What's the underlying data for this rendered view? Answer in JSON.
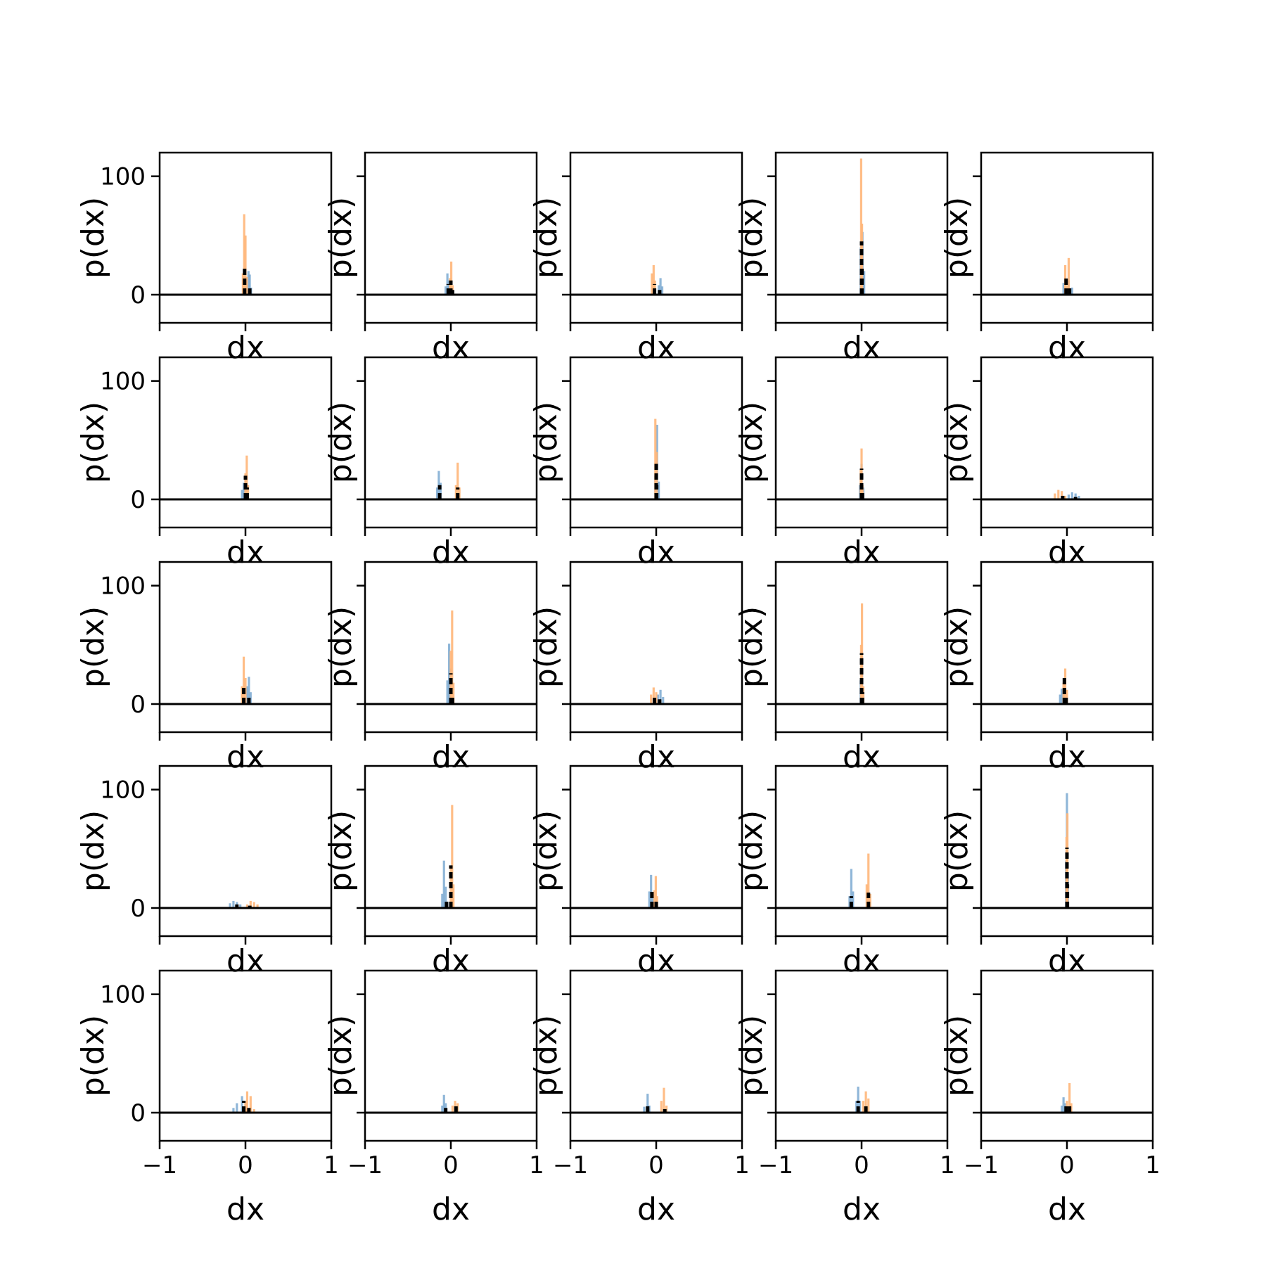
{
  "chart_data": {
    "type": "histogram-grid",
    "rows": 5,
    "cols": 5,
    "xlabel": "dx",
    "ylabel": "p(dx)",
    "xlim": [
      -1,
      1
    ],
    "ylim": [
      0,
      120
    ],
    "xticks": [
      -1,
      0,
      1
    ],
    "xtick_labels": [
      "−1",
      "0",
      "1"
    ],
    "yticks": [
      0,
      100
    ],
    "ytick_labels": [
      "0",
      "100"
    ],
    "grid": false,
    "legend": "none",
    "colors": {
      "series_a": "#7ba9d1",
      "series_b": "#ffb679",
      "series_c": "#000000"
    },
    "panels": [
      {
        "a": [
          [
            0.02,
            5
          ],
          [
            0.035,
            20
          ],
          [
            0.05,
            17
          ],
          [
            0.065,
            6
          ]
        ],
        "b": [
          [
            -0.03,
            18
          ],
          [
            -0.015,
            68
          ],
          [
            0.0,
            50
          ],
          [
            0.015,
            15
          ]
        ],
        "c": [
          [
            -0.01,
            22
          ],
          [
            0.05,
            8
          ]
        ]
      },
      {
        "a": [
          [
            -0.06,
            7
          ],
          [
            -0.04,
            18
          ],
          [
            -0.02,
            12
          ]
        ],
        "b": [
          [
            -0.01,
            14
          ],
          [
            0.005,
            28
          ],
          [
            0.02,
            8
          ]
        ],
        "c": [
          [
            -0.03,
            9
          ],
          [
            0.0,
            12
          ],
          [
            0.02,
            4
          ]
        ]
      },
      {
        "a": [
          [
            0.03,
            8
          ],
          [
            0.05,
            14
          ],
          [
            0.07,
            7
          ]
        ],
        "b": [
          [
            -0.05,
            18
          ],
          [
            -0.03,
            25
          ],
          [
            -0.015,
            12
          ]
        ],
        "c": [
          [
            -0.02,
            9
          ],
          [
            0.04,
            4
          ]
        ]
      },
      {
        "a": [
          [
            -0.01,
            40
          ],
          [
            0.01,
            53
          ],
          [
            0.03,
            20
          ]
        ],
        "b": [
          [
            -0.005,
            115
          ],
          [
            0.005,
            60
          ]
        ],
        "c": [
          [
            0.0,
            45
          ],
          [
            0.005,
            25
          ]
        ]
      },
      {
        "a": [
          [
            -0.04,
            10
          ],
          [
            0.02,
            12
          ],
          [
            0.06,
            6
          ]
        ],
        "b": [
          [
            -0.02,
            25
          ],
          [
            0.0,
            8
          ],
          [
            0.02,
            31
          ]
        ],
        "c": [
          [
            -0.01,
            16
          ],
          [
            0.03,
            8
          ]
        ]
      },
      {
        "a": [
          [
            -0.04,
            8
          ],
          [
            -0.02,
            14
          ],
          [
            0.0,
            18
          ],
          [
            0.02,
            9
          ]
        ],
        "b": [
          [
            0.0,
            22
          ],
          [
            0.015,
            37
          ],
          [
            0.03,
            12
          ]
        ],
        "c": [
          [
            0.0,
            20
          ],
          [
            0.02,
            10
          ]
        ]
      },
      {
        "a": [
          [
            -0.16,
            10
          ],
          [
            -0.14,
            24
          ],
          [
            -0.12,
            14
          ]
        ],
        "b": [
          [
            0.06,
            12
          ],
          [
            0.08,
            31
          ],
          [
            0.1,
            10
          ]
        ],
        "c": [
          [
            -0.13,
            12
          ],
          [
            0.08,
            10
          ]
        ]
      },
      {
        "a": [
          [
            -0.01,
            20
          ],
          [
            0.01,
            63
          ],
          [
            0.03,
            15
          ]
        ],
        "b": [
          [
            -0.01,
            68
          ],
          [
            0.005,
            40
          ]
        ],
        "c": [
          [
            0.0,
            30
          ],
          [
            0.005,
            12
          ]
        ]
      },
      {
        "a": [
          [
            -0.02,
            12
          ],
          [
            0.0,
            30
          ],
          [
            0.02,
            10
          ]
        ],
        "b": [
          [
            -0.01,
            25
          ],
          [
            0.0,
            43
          ],
          [
            0.01,
            12
          ]
        ],
        "c": [
          [
            0.0,
            26
          ],
          [
            0.01,
            8
          ]
        ]
      },
      {
        "a": [
          [
            0.02,
            4
          ],
          [
            0.06,
            6
          ],
          [
            0.1,
            5
          ],
          [
            0.14,
            3
          ]
        ],
        "b": [
          [
            -0.14,
            5
          ],
          [
            -0.1,
            8
          ],
          [
            -0.06,
            7
          ],
          [
            -0.02,
            3
          ]
        ],
        "c": [
          [
            -0.05,
            3
          ],
          [
            0.1,
            2
          ]
        ]
      },
      {
        "a": [
          [
            0.02,
            15
          ],
          [
            0.04,
            23
          ],
          [
            0.06,
            10
          ]
        ],
        "b": [
          [
            -0.04,
            15
          ],
          [
            -0.02,
            40
          ],
          [
            0.0,
            22
          ]
        ],
        "c": [
          [
            -0.02,
            14
          ],
          [
            0.04,
            8
          ]
        ]
      },
      {
        "a": [
          [
            -0.04,
            20
          ],
          [
            -0.02,
            51
          ],
          [
            0.0,
            30
          ]
        ],
        "b": [
          [
            0.0,
            45
          ],
          [
            0.015,
            79
          ],
          [
            0.03,
            18
          ]
        ],
        "c": [
          [
            0.0,
            26
          ],
          [
            0.02,
            8
          ]
        ]
      },
      {
        "a": [
          [
            0.02,
            8
          ],
          [
            0.05,
            12
          ],
          [
            0.08,
            6
          ]
        ],
        "b": [
          [
            -0.06,
            8
          ],
          [
            -0.03,
            14
          ],
          [
            0.0,
            10
          ]
        ],
        "c": [
          [
            -0.02,
            6
          ],
          [
            0.04,
            4
          ]
        ]
      },
      {
        "a": [
          [
            -0.01,
            20
          ],
          [
            0.005,
            40
          ],
          [
            0.02,
            12
          ]
        ],
        "b": [
          [
            -0.005,
            50
          ],
          [
            0.005,
            85
          ],
          [
            0.02,
            15
          ]
        ],
        "c": [
          [
            0.0,
            43
          ],
          [
            0.01,
            10
          ]
        ]
      },
      {
        "a": [
          [
            -0.08,
            8
          ],
          [
            -0.06,
            13
          ],
          [
            -0.04,
            10
          ]
        ],
        "b": [
          [
            -0.04,
            18
          ],
          [
            -0.02,
            30
          ],
          [
            0.0,
            12
          ]
        ],
        "c": [
          [
            -0.03,
            22
          ],
          [
            -0.01,
            8
          ]
        ]
      },
      {
        "a": [
          [
            -0.18,
            4
          ],
          [
            -0.14,
            6
          ],
          [
            -0.1,
            5
          ],
          [
            -0.06,
            3
          ]
        ],
        "b": [
          [
            0.02,
            3
          ],
          [
            0.06,
            6
          ],
          [
            0.1,
            5
          ],
          [
            0.14,
            3
          ]
        ],
        "c": [
          [
            -0.1,
            3
          ],
          [
            0.05,
            2
          ]
        ]
      },
      {
        "a": [
          [
            -0.1,
            12
          ],
          [
            -0.08,
            40
          ],
          [
            -0.06,
            18
          ]
        ],
        "b": [
          [
            0.0,
            35
          ],
          [
            0.015,
            87
          ],
          [
            0.03,
            20
          ]
        ],
        "c": [
          [
            0.0,
            36
          ],
          [
            -0.05,
            8
          ]
        ]
      },
      {
        "a": [
          [
            -0.08,
            14
          ],
          [
            -0.06,
            28
          ],
          [
            -0.04,
            12
          ]
        ],
        "b": [
          [
            -0.02,
            15
          ],
          [
            -0.005,
            27
          ],
          [
            0.01,
            10
          ]
        ],
        "c": [
          [
            -0.05,
            14
          ],
          [
            0.0,
            6
          ]
        ]
      },
      {
        "a": [
          [
            -0.14,
            10
          ],
          [
            -0.12,
            33
          ],
          [
            -0.1,
            14
          ]
        ],
        "b": [
          [
            0.06,
            20
          ],
          [
            0.08,
            46
          ],
          [
            0.1,
            12
          ]
        ],
        "c": [
          [
            -0.12,
            10
          ],
          [
            0.08,
            13
          ]
        ]
      },
      {
        "a": [
          [
            -0.01,
            40
          ],
          [
            0.0,
            97
          ],
          [
            0.01,
            30
          ]
        ],
        "b": [
          [
            -0.005,
            60
          ],
          [
            0.005,
            80
          ]
        ],
        "c": [
          [
            0.0,
            51
          ],
          [
            0.005,
            20
          ]
        ]
      },
      {
        "a": [
          [
            -0.14,
            4
          ],
          [
            -0.1,
            8
          ],
          [
            -0.04,
            14
          ],
          [
            0.0,
            10
          ]
        ],
        "b": [
          [
            0.0,
            10
          ],
          [
            0.02,
            18
          ],
          [
            0.06,
            14
          ],
          [
            0.1,
            3
          ]
        ],
        "c": [
          [
            -0.02,
            10
          ],
          [
            0.04,
            4
          ]
        ]
      },
      {
        "a": [
          [
            -0.1,
            6
          ],
          [
            -0.08,
            15
          ],
          [
            -0.06,
            8
          ]
        ],
        "b": [
          [
            0.02,
            6
          ],
          [
            0.05,
            10
          ],
          [
            0.08,
            8
          ]
        ],
        "c": [
          [
            -0.06,
            4
          ],
          [
            0.06,
            6
          ]
        ]
      },
      {
        "a": [
          [
            -0.14,
            5
          ],
          [
            -0.1,
            16
          ],
          [
            -0.08,
            6
          ]
        ],
        "b": [
          [
            0.06,
            10
          ],
          [
            0.09,
            21
          ],
          [
            0.12,
            6
          ]
        ],
        "c": [
          [
            -0.1,
            6
          ],
          [
            0.1,
            3
          ]
        ]
      },
      {
        "a": [
          [
            -0.06,
            10
          ],
          [
            -0.04,
            22
          ],
          [
            -0.02,
            10
          ]
        ],
        "b": [
          [
            0.02,
            10
          ],
          [
            0.05,
            18
          ],
          [
            0.08,
            12
          ]
        ],
        "c": [
          [
            -0.04,
            10
          ],
          [
            0.05,
            6
          ]
        ]
      },
      {
        "a": [
          [
            -0.06,
            6
          ],
          [
            -0.04,
            13
          ],
          [
            -0.02,
            8
          ]
        ],
        "b": [
          [
            0.0,
            10
          ],
          [
            0.03,
            25
          ],
          [
            0.05,
            8
          ]
        ],
        "c": [
          [
            -0.01,
            8
          ],
          [
            0.03,
            6
          ]
        ]
      }
    ]
  }
}
